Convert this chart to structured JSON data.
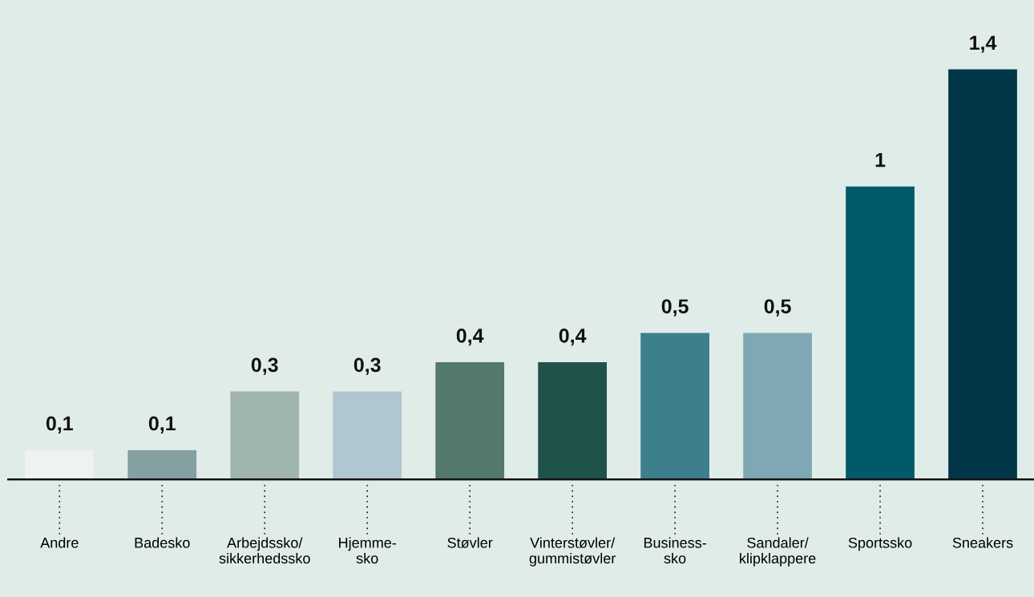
{
  "chart_data": {
    "type": "bar",
    "categories": [
      "Andre",
      "Badesko",
      "Arbejdssko/\nsikkerhedssko",
      "Hjemme-\nsko",
      "Støvler",
      "Vinterstøvler/\ngummistøvler",
      "Business-\nsko",
      "Sandaler/\nklipklappere",
      "Sportssko",
      "Sneakers"
    ],
    "values": [
      0.1,
      0.1,
      0.3,
      0.3,
      0.4,
      0.4,
      0.5,
      0.5,
      1,
      1.4
    ],
    "value_labels": [
      "0,1",
      "0,1",
      "0,3",
      "0,3",
      "0,4",
      "0,4",
      "0,5",
      "0,5",
      "1",
      "1,4"
    ],
    "colors": [
      "#eef3f2",
      "#84a0a2",
      "#9fb5ad",
      "#b0c6d0",
      "#52796c",
      "#1f5248",
      "#3d7f8c",
      "#7fa8b5",
      "#005a6a",
      "#013648"
    ],
    "tick_labels": "x",
    "grid": false,
    "legend": false
  }
}
